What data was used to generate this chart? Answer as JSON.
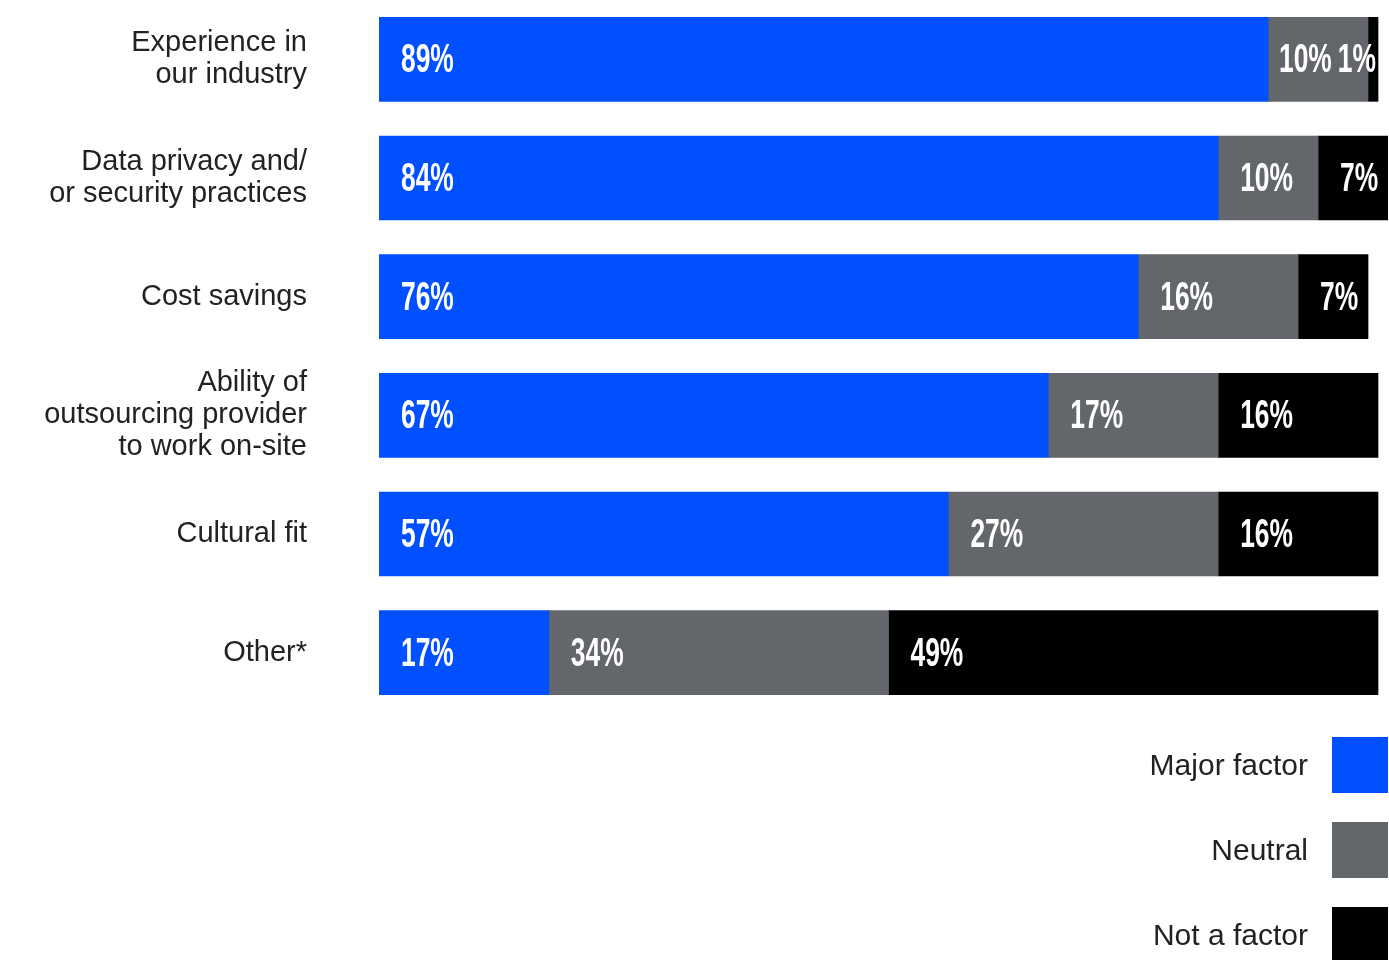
{
  "chart_data": {
    "type": "bar",
    "orientation": "horizontal",
    "stacked": true,
    "grid": false,
    "legend": "bottom right",
    "categories": [
      "Experience in our industry",
      "Data privacy and/ or security practices",
      "Cost savings",
      "Ability of outsourcing provider to work on-site",
      "Cultural fit",
      "Other*"
    ],
    "series": [
      {
        "name": "Major factor",
        "color": "#0050ff",
        "values": [
          89,
          84,
          76,
          67,
          57,
          17
        ],
        "value_labels": [
          "89%",
          "84%",
          "76%",
          "67%",
          "57%",
          "17%"
        ]
      },
      {
        "name": "Neutral",
        "color": "#63666a",
        "values": [
          10,
          10,
          16,
          17,
          27,
          34
        ],
        "value_labels": [
          "10%",
          "10%",
          "16%",
          "17%",
          "27%",
          "34%"
        ]
      },
      {
        "name": "Not a factor",
        "color": "#000000",
        "values": [
          1,
          7,
          7,
          16,
          16,
          49
        ],
        "value_labels": [
          "1%",
          "7%",
          "7%",
          "16%",
          "16%",
          "49%"
        ]
      }
    ]
  }
}
